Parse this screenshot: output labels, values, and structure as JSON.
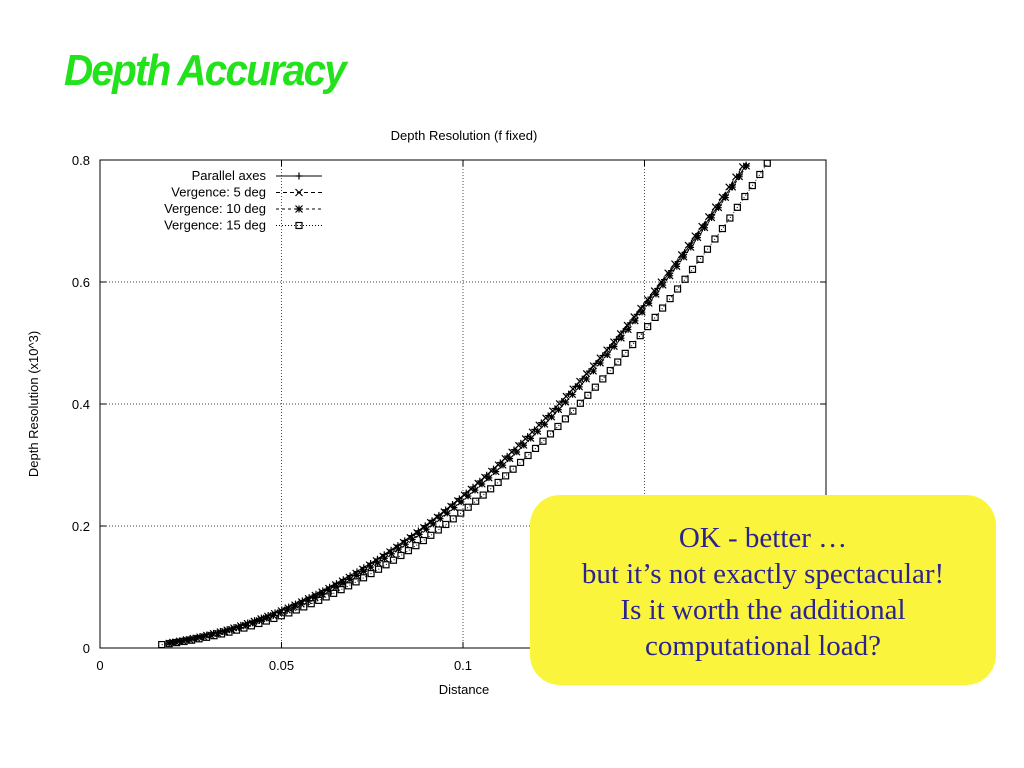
{
  "slide": {
    "title": "Depth Accuracy"
  },
  "callout": {
    "lines": [
      "OK -  better …",
      "but it’s not exactly spectacular!",
      "Is it worth the additional",
      "computational load?"
    ],
    "background": "#fbf43d",
    "text_color": "#2b2390"
  },
  "colors": {
    "title": "#21e21b",
    "series": "#000000",
    "grid": "#000000"
  },
  "chart_data": {
    "type": "line",
    "title": "Depth Resolution (f fixed)",
    "xlabel": "Distance",
    "ylabel": "Depth Resolution (x10^3)",
    "xlim": [
      0,
      0.2
    ],
    "ylim": [
      0,
      0.8
    ],
    "x_ticks": [
      "0",
      "0.05",
      "0.1"
    ],
    "y_ticks": [
      "0",
      "0.2",
      "0.4",
      "0.6",
      "0.8"
    ],
    "grid": true,
    "legend_position": "top-left",
    "series": [
      {
        "name": "Parallel axes",
        "marker": "plus",
        "x_start": 0.02,
        "x_end": 0.178,
        "y_at_x_0_1": 0.25,
        "exponent": 2
      },
      {
        "name": "Vergence: 5 deg",
        "marker": "cross",
        "x_start": 0.02,
        "x_end": 0.177,
        "y_at_x_0_1": 0.249,
        "exponent": 2.02
      },
      {
        "name": "Vergence: 10 deg",
        "marker": "star",
        "x_start": 0.019,
        "x_end": 0.18,
        "y_at_x_0_1": 0.242,
        "exponent": 2.05
      },
      {
        "name": "Vergence: 15 deg",
        "marker": "square",
        "x_start": 0.017,
        "x_end": 0.19,
        "y_at_x_0_1": 0.224,
        "exponent": 2.08
      }
    ]
  }
}
